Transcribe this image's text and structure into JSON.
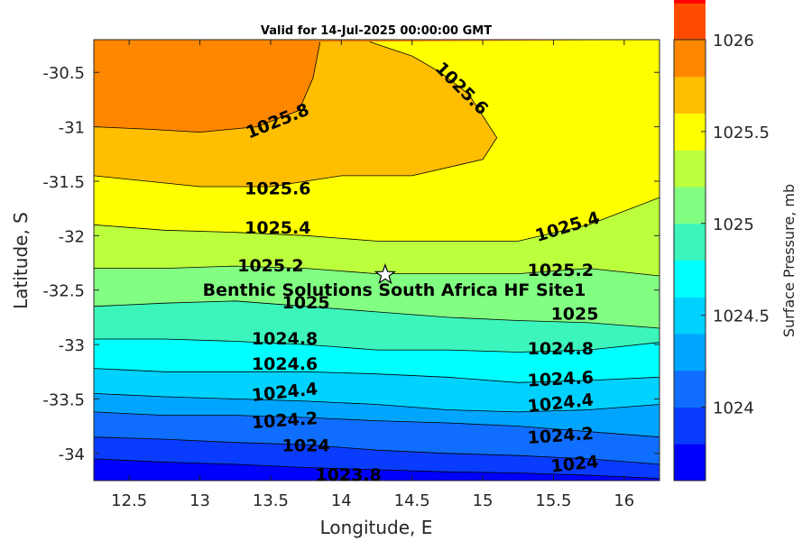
{
  "chart_data": {
    "type": "contour",
    "title": "Valid for 14-Jul-2025 00:00:00 GMT",
    "xlabel": "Longitude, E",
    "ylabel": "Latitude, S",
    "xlim": [
      12.25,
      16.25
    ],
    "ylim": [
      -34.25,
      -30.2
    ],
    "xticks": [
      12.5,
      13,
      13.5,
      14,
      14.5,
      15,
      15.5,
      16
    ],
    "xtick_labels": [
      "12.5",
      "13",
      "13.5",
      "14",
      "14.5",
      "15",
      "15.5",
      "16"
    ],
    "yticks": [
      -30.5,
      -31,
      -31.5,
      -32,
      -32.5,
      -33,
      -33.5,
      -34
    ],
    "ytick_labels": [
      "-30.5",
      "-31",
      "-31.5",
      "-32",
      "-32.5",
      "-33",
      "-33.5",
      "-34"
    ],
    "colorbar": {
      "label": "Surface Pressure, mb",
      "range": [
        1023.6,
        1026.0
      ],
      "step": 0.2,
      "ticks": [
        1024,
        1024.5,
        1025,
        1025.5,
        1026
      ],
      "tick_labels": [
        "1024",
        "1024.5",
        "1025",
        "1025.5",
        "1026"
      ],
      "colors": [
        "#0000ff",
        "#0a3cff",
        "#0f6eff",
        "#00a5ff",
        "#00d2ff",
        "#00ffff",
        "#3cf5bc",
        "#82ff82",
        "#bcff3c",
        "#ffff00",
        "#ffbe00",
        "#ff8700",
        "#ff4b00",
        "#ff0000"
      ]
    },
    "contour_lines": [
      {
        "level": 1025.8,
        "points": [
          [
            12.25,
            -31.0
          ],
          [
            12.6,
            -31.02
          ],
          [
            13.0,
            -31.05
          ],
          [
            13.4,
            -31.0
          ],
          [
            13.7,
            -30.85
          ],
          [
            13.8,
            -30.55
          ],
          [
            13.85,
            -30.22
          ]
        ]
      },
      {
        "level": 1025.6,
        "points": [
          [
            12.25,
            -31.45
          ],
          [
            13.0,
            -31.55
          ],
          [
            13.5,
            -31.55
          ],
          [
            14.0,
            -31.45
          ],
          [
            14.5,
            -31.45
          ],
          [
            15.0,
            -31.3
          ],
          [
            15.1,
            -31.1
          ],
          [
            15.0,
            -30.9
          ],
          [
            14.9,
            -30.7
          ],
          [
            14.7,
            -30.5
          ],
          [
            14.5,
            -30.35
          ],
          [
            14.2,
            -30.22
          ]
        ]
      },
      {
        "level": 1025.4,
        "points": [
          [
            12.25,
            -31.9
          ],
          [
            12.75,
            -31.95
          ],
          [
            13.25,
            -31.97
          ],
          [
            13.75,
            -32.0
          ],
          [
            14.25,
            -32.05
          ],
          [
            14.75,
            -32.05
          ],
          [
            15.25,
            -32.05
          ],
          [
            15.75,
            -31.9
          ],
          [
            16.25,
            -31.65
          ]
        ]
      },
      {
        "level": 1025.2,
        "points": [
          [
            12.25,
            -32.3
          ],
          [
            12.75,
            -32.3
          ],
          [
            13.25,
            -32.28
          ],
          [
            13.75,
            -32.3
          ],
          [
            14.25,
            -32.35
          ],
          [
            14.75,
            -32.35
          ],
          [
            15.25,
            -32.35
          ],
          [
            15.75,
            -32.3
          ],
          [
            16.25,
            -32.37
          ]
        ]
      },
      {
        "level": 1025.0,
        "points": [
          [
            12.25,
            -32.65
          ],
          [
            12.75,
            -32.62
          ],
          [
            13.25,
            -32.6
          ],
          [
            13.75,
            -32.65
          ],
          [
            14.25,
            -32.7
          ],
          [
            14.75,
            -32.75
          ],
          [
            15.25,
            -32.78
          ],
          [
            15.75,
            -32.8
          ],
          [
            16.25,
            -32.85
          ]
        ]
      },
      {
        "level": 1024.8,
        "points": [
          [
            12.25,
            -32.95
          ],
          [
            12.75,
            -32.95
          ],
          [
            13.25,
            -32.97
          ],
          [
            13.75,
            -33.0
          ],
          [
            14.25,
            -33.05
          ],
          [
            14.75,
            -33.05
          ],
          [
            15.25,
            -33.07
          ],
          [
            15.75,
            -33.05
          ],
          [
            16.25,
            -32.98
          ]
        ]
      },
      {
        "level": 1024.6,
        "points": [
          [
            12.25,
            -33.22
          ],
          [
            12.75,
            -33.25
          ],
          [
            13.25,
            -33.25
          ],
          [
            13.75,
            -33.25
          ],
          [
            14.25,
            -33.27
          ],
          [
            14.75,
            -33.3
          ],
          [
            15.25,
            -33.35
          ],
          [
            15.75,
            -33.33
          ],
          [
            16.25,
            -33.3
          ]
        ]
      },
      {
        "level": 1024.4,
        "points": [
          [
            12.25,
            -33.45
          ],
          [
            12.75,
            -33.48
          ],
          [
            13.25,
            -33.5
          ],
          [
            13.75,
            -33.52
          ],
          [
            14.25,
            -33.55
          ],
          [
            14.75,
            -33.6
          ],
          [
            15.25,
            -33.62
          ],
          [
            15.75,
            -33.6
          ],
          [
            16.25,
            -33.55
          ]
        ]
      },
      {
        "level": 1024.2,
        "points": [
          [
            12.25,
            -33.62
          ],
          [
            12.75,
            -33.65
          ],
          [
            13.25,
            -33.65
          ],
          [
            13.75,
            -33.67
          ],
          [
            14.25,
            -33.7
          ],
          [
            14.75,
            -33.72
          ],
          [
            15.25,
            -33.75
          ],
          [
            15.75,
            -33.8
          ],
          [
            16.25,
            -33.85
          ]
        ]
      },
      {
        "level": 1024.0,
        "points": [
          [
            12.25,
            -33.85
          ],
          [
            12.75,
            -33.87
          ],
          [
            13.25,
            -33.9
          ],
          [
            13.75,
            -33.92
          ],
          [
            14.25,
            -33.97
          ],
          [
            14.75,
            -34.0
          ],
          [
            15.25,
            -34.02
          ],
          [
            15.75,
            -34.05
          ],
          [
            16.25,
            -34.1
          ]
        ]
      },
      {
        "level": 1023.8,
        "points": [
          [
            12.25,
            -34.05
          ],
          [
            12.75,
            -34.08
          ],
          [
            13.25,
            -34.1
          ],
          [
            13.75,
            -34.13
          ],
          [
            14.25,
            -34.15
          ],
          [
            14.75,
            -34.17
          ],
          [
            15.25,
            -34.18
          ],
          [
            15.75,
            -34.2
          ],
          [
            16.25,
            -34.23
          ]
        ]
      }
    ],
    "contour_labels": [
      {
        "text": "1025.8",
        "lon": 13.55,
        "lat": -30.95,
        "angle": -22
      },
      {
        "text": "1025.6",
        "lon": 14.85,
        "lat": -30.65,
        "angle": 45
      },
      {
        "text": "1025.6",
        "lon": 13.55,
        "lat": -31.57,
        "angle": 0
      },
      {
        "text": "1025.4",
        "lon": 13.55,
        "lat": -31.93,
        "angle": 0
      },
      {
        "text": "1025.4",
        "lon": 15.6,
        "lat": -31.92,
        "angle": -17
      },
      {
        "text": "1025.2",
        "lon": 13.5,
        "lat": -32.28,
        "angle": 0
      },
      {
        "text": "1025.2",
        "lon": 15.55,
        "lat": -32.32,
        "angle": 0
      },
      {
        "text": "1025",
        "lon": 13.75,
        "lat": -32.62,
        "angle": 0
      },
      {
        "text": "1025",
        "lon": 15.65,
        "lat": -32.72,
        "angle": 0
      },
      {
        "text": "1024.8",
        "lon": 13.6,
        "lat": -32.95,
        "angle": 0
      },
      {
        "text": "1024.8",
        "lon": 15.55,
        "lat": -33.04,
        "angle": 0
      },
      {
        "text": "1024.6",
        "lon": 13.6,
        "lat": -33.18,
        "angle": 0
      },
      {
        "text": "1024.6",
        "lon": 15.55,
        "lat": -33.32,
        "angle": -3
      },
      {
        "text": "1024.4",
        "lon": 13.6,
        "lat": -33.44,
        "angle": -6
      },
      {
        "text": "1024.4",
        "lon": 15.55,
        "lat": -33.54,
        "angle": -6
      },
      {
        "text": "1024.2",
        "lon": 13.6,
        "lat": -33.7,
        "angle": -4
      },
      {
        "text": "1024.2",
        "lon": 15.55,
        "lat": -33.84,
        "angle": -4
      },
      {
        "text": "1024",
        "lon": 13.75,
        "lat": -33.93,
        "angle": 0
      },
      {
        "text": "1024",
        "lon": 15.65,
        "lat": -34.1,
        "angle": -6
      },
      {
        "text": "1023.8",
        "lon": 14.05,
        "lat": -34.2,
        "angle": 0
      }
    ],
    "site": {
      "name": "Benthic Solutions South Africa HF Site1",
      "lon": 14.31,
      "lat": -32.36,
      "marker": "white-star"
    }
  }
}
